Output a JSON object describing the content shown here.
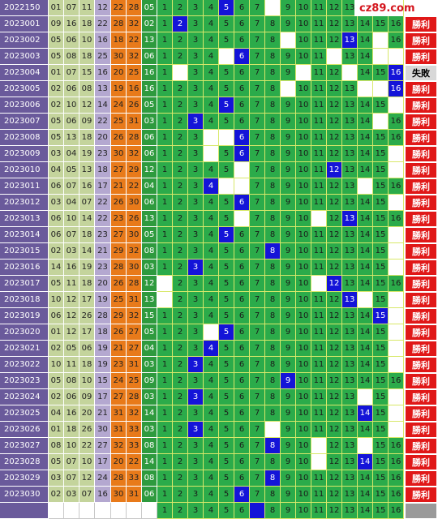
{
  "logo": {
    "text": "cz89.com"
  },
  "labels": {
    "win": "勝利",
    "lose": "失敗"
  },
  "rows": [
    {
      "issue": "2022150",
      "nums": [
        "01",
        "07",
        "11",
        "12",
        "22",
        "28"
      ],
      "last": "05",
      "hit": 5,
      "result": ""
    },
    {
      "issue": "2023001",
      "nums": [
        "09",
        "16",
        "18",
        "22",
        "28",
        "32"
      ],
      "last": "02",
      "hit": 2,
      "result": "win"
    },
    {
      "issue": "2023002",
      "nums": [
        "05",
        "06",
        "10",
        "16",
        "18",
        "22"
      ],
      "last": "13",
      "hit": 13,
      "result": "win"
    },
    {
      "issue": "2023003",
      "nums": [
        "05",
        "08",
        "18",
        "25",
        "30",
        "32"
      ],
      "last": "06",
      "hit": 6,
      "result": "win"
    },
    {
      "issue": "2023004",
      "nums": [
        "01",
        "07",
        "15",
        "16",
        "20",
        "25"
      ],
      "last": "16",
      "hit": 16,
      "result": "lose"
    },
    {
      "issue": "2023005",
      "nums": [
        "02",
        "06",
        "08",
        "13",
        "19",
        "16"
      ],
      "last": "16",
      "hit": 16,
      "result": "win"
    },
    {
      "issue": "2023006",
      "nums": [
        "02",
        "10",
        "12",
        "14",
        "24",
        "26"
      ],
      "last": "05",
      "hit": 5,
      "result": "win"
    },
    {
      "issue": "2023007",
      "nums": [
        "05",
        "06",
        "09",
        "22",
        "25",
        "31"
      ],
      "last": "03",
      "hit": 3,
      "result": "win"
    },
    {
      "issue": "2023008",
      "nums": [
        "05",
        "13",
        "18",
        "20",
        "26",
        "28"
      ],
      "last": "06",
      "hit": 6,
      "result": "win"
    },
    {
      "issue": "2023009",
      "nums": [
        "03",
        "04",
        "19",
        "23",
        "30",
        "32"
      ],
      "last": "06",
      "hit": 6,
      "result": "win"
    },
    {
      "issue": "2023010",
      "nums": [
        "04",
        "05",
        "13",
        "18",
        "27",
        "29"
      ],
      "last": "12",
      "hit": 12,
      "result": "win"
    },
    {
      "issue": "2023011",
      "nums": [
        "06",
        "07",
        "16",
        "17",
        "21",
        "22"
      ],
      "last": "04",
      "hit": 4,
      "result": "win"
    },
    {
      "issue": "2023012",
      "nums": [
        "03",
        "04",
        "07",
        "22",
        "26",
        "30"
      ],
      "last": "06",
      "hit": 6,
      "result": "win"
    },
    {
      "issue": "2023013",
      "nums": [
        "06",
        "10",
        "14",
        "22",
        "23",
        "26"
      ],
      "last": "13",
      "hit": 13,
      "result": "win"
    },
    {
      "issue": "2023014",
      "nums": [
        "06",
        "07",
        "18",
        "23",
        "27",
        "30"
      ],
      "last": "05",
      "hit": 5,
      "result": "win"
    },
    {
      "issue": "2023015",
      "nums": [
        "02",
        "03",
        "14",
        "21",
        "29",
        "32"
      ],
      "last": "08",
      "hit": 8,
      "result": "win"
    },
    {
      "issue": "2023016",
      "nums": [
        "14",
        "16",
        "19",
        "23",
        "28",
        "30"
      ],
      "last": "03",
      "hit": 3,
      "result": "win"
    },
    {
      "issue": "2023017",
      "nums": [
        "05",
        "11",
        "18",
        "20",
        "26",
        "28"
      ],
      "last": "12",
      "hit": 12,
      "result": "win"
    },
    {
      "issue": "2023018",
      "nums": [
        "10",
        "12",
        "17",
        "19",
        "25",
        "31"
      ],
      "last": "13",
      "hit": 13,
      "result": "win"
    },
    {
      "issue": "2023019",
      "nums": [
        "06",
        "12",
        "26",
        "28",
        "29",
        "32"
      ],
      "last": "15",
      "hit": 15,
      "result": "win"
    },
    {
      "issue": "2023020",
      "nums": [
        "01",
        "12",
        "17",
        "18",
        "26",
        "27"
      ],
      "last": "05",
      "hit": 5,
      "result": "win"
    },
    {
      "issue": "2023021",
      "nums": [
        "02",
        "05",
        "06",
        "19",
        "21",
        "27"
      ],
      "last": "04",
      "hit": 4,
      "result": "win"
    },
    {
      "issue": "2023022",
      "nums": [
        "10",
        "11",
        "18",
        "19",
        "23",
        "31"
      ],
      "last": "03",
      "hit": 3,
      "result": "win"
    },
    {
      "issue": "2023023",
      "nums": [
        "05",
        "08",
        "10",
        "15",
        "24",
        "25"
      ],
      "last": "09",
      "hit": 9,
      "result": "win"
    },
    {
      "issue": "2023024",
      "nums": [
        "02",
        "06",
        "09",
        "17",
        "27",
        "28"
      ],
      "last": "03",
      "hit": 3,
      "result": "win"
    },
    {
      "issue": "2023025",
      "nums": [
        "04",
        "16",
        "20",
        "21",
        "31",
        "32"
      ],
      "last": "14",
      "hit": 14,
      "result": "win"
    },
    {
      "issue": "2023026",
      "nums": [
        "01",
        "18",
        "26",
        "30",
        "31",
        "33"
      ],
      "last": "03",
      "hit": 3,
      "result": "win"
    },
    {
      "issue": "2023027",
      "nums": [
        "08",
        "10",
        "22",
        "27",
        "32",
        "33"
      ],
      "last": "08",
      "hit": 8,
      "result": "win"
    },
    {
      "issue": "2023028",
      "nums": [
        "05",
        "07",
        "10",
        "17",
        "20",
        "22"
      ],
      "last": "14",
      "hit": 14,
      "result": "win"
    },
    {
      "issue": "2023029",
      "nums": [
        "03",
        "07",
        "12",
        "24",
        "28",
        "33"
      ],
      "last": "08",
      "hit": 8,
      "result": "win"
    },
    {
      "issue": "2023030",
      "nums": [
        "02",
        "03",
        "07",
        "16",
        "30",
        "31"
      ],
      "last": "06",
      "hit": 6,
      "result": "win"
    }
  ],
  "trend_rows": [
    {
      "hit": 5,
      "miss": [
        8
      ]
    },
    {
      "hit": 2,
      "miss": []
    },
    {
      "hit": 13,
      "miss": [
        9,
        15
      ]
    },
    {
      "hit": 6,
      "miss": [
        5,
        12,
        15,
        16
      ]
    },
    {
      "hit": 16,
      "miss": [
        2,
        10,
        13
      ]
    },
    {
      "hit": 16,
      "miss": [
        9,
        14,
        15
      ]
    },
    {
      "hit": 5,
      "miss": [
        16
      ]
    },
    {
      "hit": 3,
      "miss": [
        15
      ]
    },
    {
      "hit": 6,
      "miss": [
        4,
        5
      ]
    },
    {
      "hit": 6,
      "miss": [
        4,
        16
      ]
    },
    {
      "hit": 12,
      "miss": [
        6,
        16
      ]
    },
    {
      "hit": 4,
      "miss": [
        5,
        6,
        14
      ]
    },
    {
      "hit": 6,
      "miss": [
        16
      ]
    },
    {
      "hit": 13,
      "miss": [
        6,
        11
      ]
    },
    {
      "hit": 5,
      "miss": [
        16
      ]
    },
    {
      "hit": 8,
      "miss": [
        16
      ]
    },
    {
      "hit": 3,
      "miss": [
        16
      ]
    },
    {
      "hit": 12,
      "miss": [
        1,
        11
      ]
    },
    {
      "hit": 13,
      "miss": [
        1,
        14,
        16
      ]
    },
    {
      "hit": 15,
      "miss": [
        16
      ]
    },
    {
      "hit": 5,
      "miss": [
        4,
        16
      ]
    },
    {
      "hit": 4,
      "miss": [
        16
      ]
    },
    {
      "hit": 3,
      "miss": [
        16
      ]
    },
    {
      "hit": 9,
      "miss": []
    },
    {
      "hit": 3,
      "miss": [
        14,
        16
      ]
    },
    {
      "hit": 14,
      "miss": [
        16
      ]
    },
    {
      "hit": 3,
      "miss": [
        8,
        16
      ]
    },
    {
      "hit": 8,
      "miss": [
        11,
        14
      ]
    },
    {
      "hit": 14,
      "miss": [
        11
      ]
    },
    {
      "hit": 8,
      "miss": []
    },
    {
      "hit": 6,
      "miss": []
    }
  ],
  "colors": {
    "win": "#e01818",
    "lose": "#d8d8d8",
    "hit": "#1414d8",
    "grid": "#2bab4a"
  }
}
